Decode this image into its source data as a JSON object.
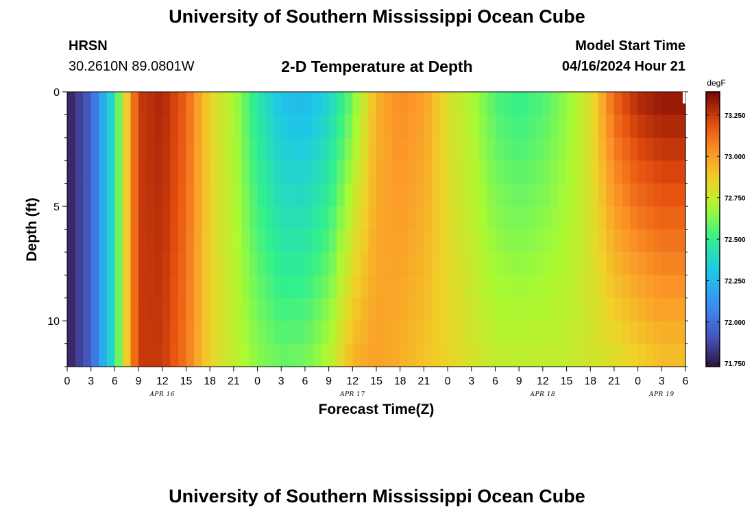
{
  "header": {
    "title": "University of Southern Mississippi Ocean Cube",
    "station": "HRSN",
    "coords": "30.2610N  89.0801W",
    "subtitle": "2-D Temperature at Depth",
    "start_label": "Model Start Time",
    "start_value": "04/16/2024 Hour 21"
  },
  "footer": {
    "title": "University of Southern Mississippi Ocean Cube"
  },
  "chart_data": {
    "type": "heatmap",
    "title": "2-D Temperature at Depth",
    "xlabel": "Forecast Time(Z)",
    "ylabel": "Depth (ft)",
    "x_ticks": [
      "0",
      "3",
      "6",
      "9",
      "12",
      "15",
      "18",
      "21",
      "0",
      "3",
      "6",
      "9",
      "12",
      "15",
      "18",
      "21",
      "0",
      "3",
      "6",
      "9",
      "12",
      "15",
      "18",
      "21",
      "0",
      "3",
      "6"
    ],
    "x_hours": [
      0,
      3,
      6,
      9,
      12,
      15,
      18,
      21,
      24,
      27,
      30,
      33,
      36,
      39,
      42,
      45,
      48,
      51,
      54,
      57,
      60,
      63,
      66,
      69,
      72,
      75,
      78
    ],
    "x_range_hours": [
      0,
      78
    ],
    "date_labels": [
      {
        "label": "APR 16",
        "hour": 12
      },
      {
        "label": "APR 17",
        "hour": 36
      },
      {
        "label": "APR 18",
        "hour": 60
      },
      {
        "label": "APR 19",
        "hour": 75
      }
    ],
    "y_ticks": [
      0,
      5,
      10
    ],
    "y_range": [
      0,
      12
    ],
    "y_reversed": true,
    "colorbar": {
      "unit": "degF",
      "range": [
        71.73,
        73.39
      ],
      "ticks": [
        "71.750",
        "72.000",
        "72.250",
        "72.500",
        "72.750",
        "73.000",
        "73.250"
      ],
      "colormap": "turbo"
    },
    "time_hours": [
      0,
      3,
      6,
      7,
      9,
      12,
      15,
      18,
      21,
      24,
      27,
      30,
      33,
      36,
      39,
      42,
      45,
      48,
      51,
      54,
      57,
      60,
      63,
      66,
      69,
      72,
      75,
      78
    ],
    "temperature_surface_degF": [
      71.76,
      71.95,
      72.45,
      72.75,
      73.25,
      73.3,
      73.15,
      72.85,
      72.7,
      72.45,
      72.28,
      72.25,
      72.35,
      72.6,
      72.95,
      73.05,
      73.0,
      72.8,
      72.7,
      72.55,
      72.5,
      72.55,
      72.65,
      72.8,
      73.15,
      73.3,
      73.35,
      73.35
    ],
    "temperature_bottom_degF": [
      71.76,
      71.95,
      72.45,
      72.75,
      73.25,
      73.25,
      73.1,
      72.85,
      72.75,
      72.65,
      72.6,
      72.62,
      72.72,
      72.95,
      73.0,
      72.95,
      72.9,
      72.85,
      72.8,
      72.75,
      72.75,
      72.75,
      72.75,
      72.78,
      72.8,
      72.85,
      72.9,
      72.9
    ]
  }
}
